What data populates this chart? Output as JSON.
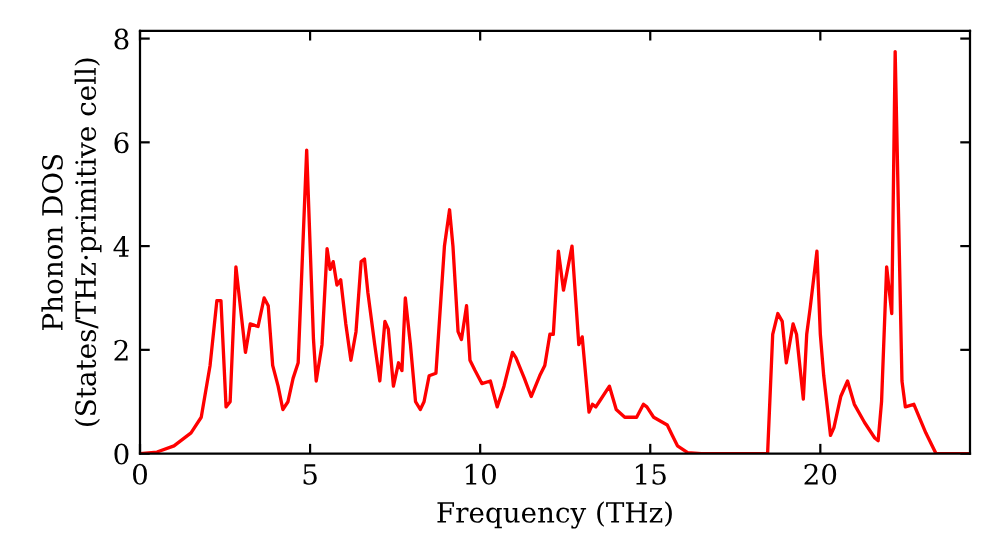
{
  "chart_data": {
    "type": "line",
    "xlabel": "Frequency (THz)",
    "ylabel": "Phonon DOS\n(States/THz·primitive cell)",
    "xlim": [
      0,
      24.4
    ],
    "ylim": [
      0,
      8.15
    ],
    "xticks": [
      0,
      5,
      10,
      15,
      20
    ],
    "yticks": [
      0,
      2,
      4,
      6,
      8
    ],
    "grid": false,
    "legend": false,
    "marker": "none",
    "line_style": "solid",
    "series": [
      {
        "color": "#ff0000",
        "x": [
          0,
          0.5,
          1.0,
          1.5,
          1.8,
          2.06,
          2.26,
          2.38,
          2.53,
          2.65,
          2.82,
          3.1,
          3.24,
          3.47,
          3.65,
          3.77,
          3.9,
          4.06,
          4.2,
          4.35,
          4.5,
          4.65,
          4.9,
          5.1,
          5.18,
          5.35,
          5.5,
          5.59,
          5.68,
          5.79,
          5.9,
          6.05,
          6.2,
          6.35,
          6.5,
          6.6,
          6.7,
          6.9,
          7.05,
          7.2,
          7.3,
          7.45,
          7.6,
          7.7,
          7.8,
          7.95,
          8.1,
          8.24,
          8.35,
          8.5,
          8.7,
          8.95,
          9.1,
          9.2,
          9.35,
          9.45,
          9.6,
          9.7,
          9.85,
          10.05,
          10.3,
          10.5,
          10.7,
          10.95,
          11.05,
          11.3,
          11.5,
          11.75,
          11.9,
          12.05,
          12.15,
          12.3,
          12.45,
          12.7,
          12.9,
          13.0,
          13.2,
          13.3,
          13.4,
          13.5,
          13.8,
          14.0,
          14.25,
          14.6,
          14.8,
          14.9,
          15.1,
          15.5,
          15.65,
          15.8,
          16.1,
          16.5,
          18.45,
          18.6,
          18.75,
          18.88,
          19.0,
          19.2,
          19.3,
          19.5,
          19.6,
          19.7,
          19.9,
          20.0,
          20.1,
          20.3,
          20.4,
          20.6,
          20.8,
          21.0,
          21.3,
          21.6,
          21.7,
          21.8,
          21.95,
          22.1,
          22.2,
          22.4,
          22.5,
          22.75,
          23.1,
          23.4,
          24.4
        ],
        "values": [
          0,
          0.03,
          0.15,
          0.4,
          0.7,
          1.7,
          2.95,
          2.95,
          0.9,
          1.0,
          3.6,
          1.95,
          2.5,
          2.45,
          3.0,
          2.85,
          1.7,
          1.3,
          0.85,
          1.0,
          1.45,
          1.75,
          5.85,
          2.2,
          1.4,
          2.1,
          3.95,
          3.55,
          3.7,
          3.25,
          3.35,
          2.5,
          1.8,
          2.35,
          3.7,
          3.75,
          3.1,
          2.1,
          1.4,
          2.55,
          2.4,
          1.3,
          1.75,
          1.6,
          3.0,
          2.1,
          1.0,
          0.85,
          1.0,
          1.5,
          1.55,
          4.0,
          4.7,
          4.0,
          2.35,
          2.2,
          2.85,
          1.8,
          1.6,
          1.35,
          1.4,
          0.9,
          1.3,
          1.95,
          1.85,
          1.45,
          1.1,
          1.5,
          1.7,
          2.3,
          2.3,
          3.9,
          3.15,
          4.0,
          2.1,
          2.25,
          0.8,
          0.95,
          0.9,
          1.0,
          1.3,
          0.85,
          0.7,
          0.7,
          0.95,
          0.9,
          0.7,
          0.55,
          0.35,
          0.15,
          0.02,
          0,
          0,
          2.3,
          2.7,
          2.55,
          1.75,
          2.5,
          2.3,
          1.05,
          2.3,
          2.8,
          3.9,
          2.3,
          1.5,
          0.35,
          0.5,
          1.1,
          1.4,
          0.95,
          0.6,
          0.3,
          0.25,
          1.0,
          3.6,
          2.7,
          7.75,
          1.4,
          0.9,
          0.95,
          0.4,
          0,
          0
        ]
      }
    ]
  }
}
